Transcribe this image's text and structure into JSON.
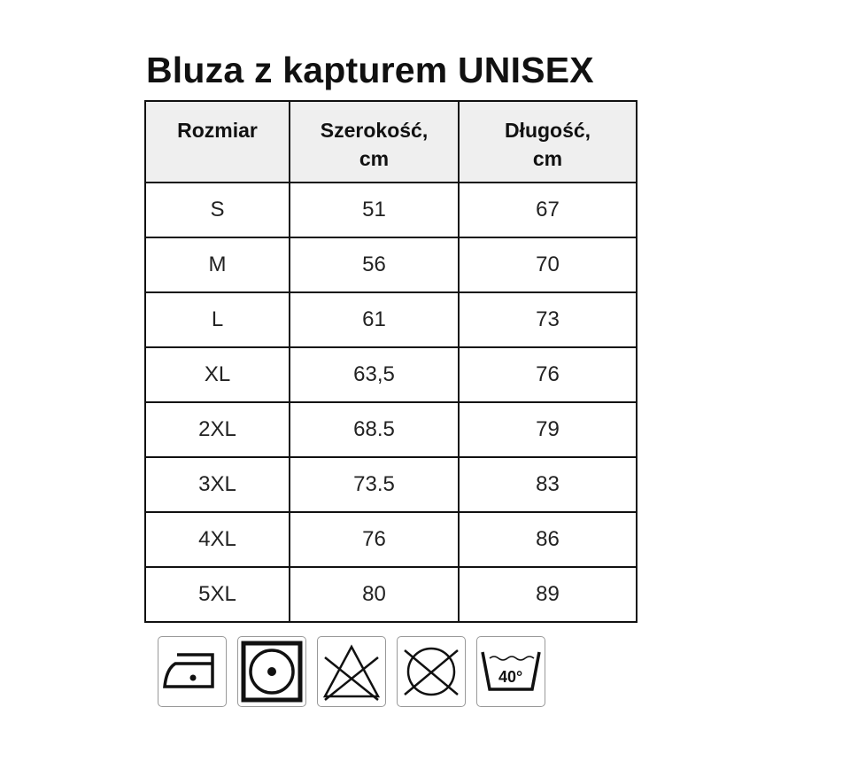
{
  "title": "Bluza z kapturem UNISEX",
  "table": {
    "headers": [
      "Rozmiar",
      "Szerokość,\ncm",
      "Długość,\ncm"
    ],
    "header_lines": [
      [
        "Rozmiar"
      ],
      [
        "Szerokość,",
        "cm"
      ],
      [
        "Długość,",
        "cm"
      ]
    ],
    "rows": [
      [
        "S",
        "51",
        "67"
      ],
      [
        "M",
        "56",
        "70"
      ],
      [
        "L",
        "61",
        "73"
      ],
      [
        "XL",
        "63,5",
        "76"
      ],
      [
        "2XL",
        "68.5",
        "79"
      ],
      [
        "3XL",
        "73.5",
        "83"
      ],
      [
        "4XL",
        "76",
        "86"
      ],
      [
        "5XL",
        "80",
        "89"
      ]
    ]
  },
  "care_icons": [
    {
      "name": "iron-low-heat-icon"
    },
    {
      "name": "tumble-dry-low-icon"
    },
    {
      "name": "do-not-bleach-icon"
    },
    {
      "name": "do-not-dry-clean-icon"
    },
    {
      "name": "wash-40-icon",
      "label": "40°"
    }
  ]
}
